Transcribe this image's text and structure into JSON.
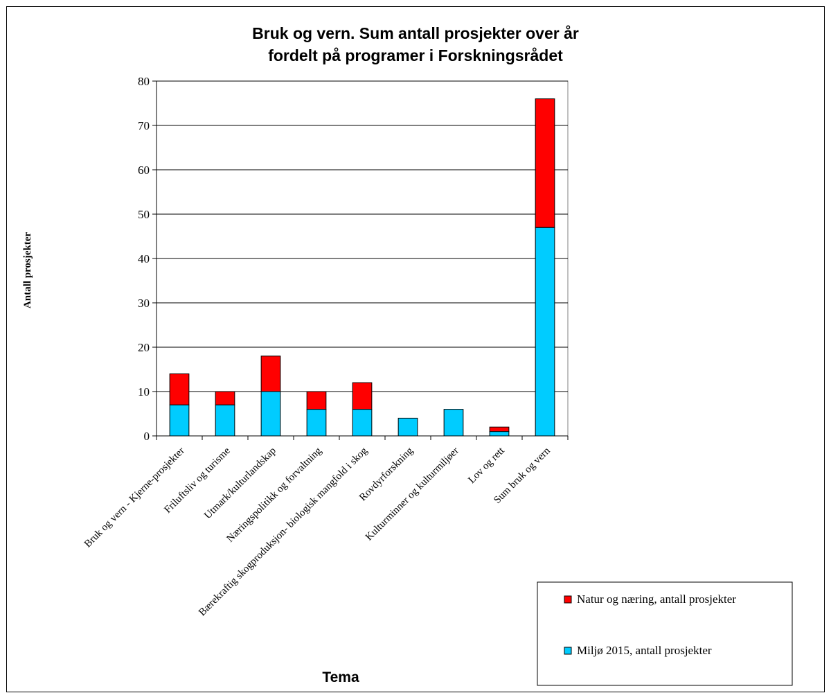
{
  "chart_data": {
    "type": "bar",
    "stacked": true,
    "title_lines": [
      "Bruk og vern. Sum antall prosjekter over år",
      "fordelt på programer i Forskningsrådet"
    ],
    "xlabel": "Tema",
    "ylabel": "Antall prosjekter",
    "ylim": [
      0,
      80
    ],
    "yticks": [
      0,
      10,
      20,
      30,
      40,
      50,
      60,
      70,
      80
    ],
    "grid": true,
    "legend_position": "bottom-right",
    "categories": [
      "Bruk og vern - Kjerne-prosjekter",
      "Friluftsliv og turisme",
      "Utmark/kulturlandskap",
      "Næringspolitikk og forvaltning",
      "Bærekraftig skogproduksjon- biologisk mangfold i skog",
      "Rovdyrforskning",
      "Kulturminner og kulturmiljøer",
      "Lov og rett",
      "Sum bruk og vern"
    ],
    "series": [
      {
        "name": "Miljø 2015, antall prosjekter",
        "color": "#00ccff",
        "values": [
          7,
          7,
          10,
          6,
          6,
          4,
          6,
          1,
          47
        ]
      },
      {
        "name": "Natur og næring, antall prosjekter",
        "color": "#ff0000",
        "values": [
          7,
          3,
          8,
          4,
          6,
          0,
          0,
          1,
          29
        ]
      }
    ],
    "legend_order": [
      1,
      0
    ]
  }
}
